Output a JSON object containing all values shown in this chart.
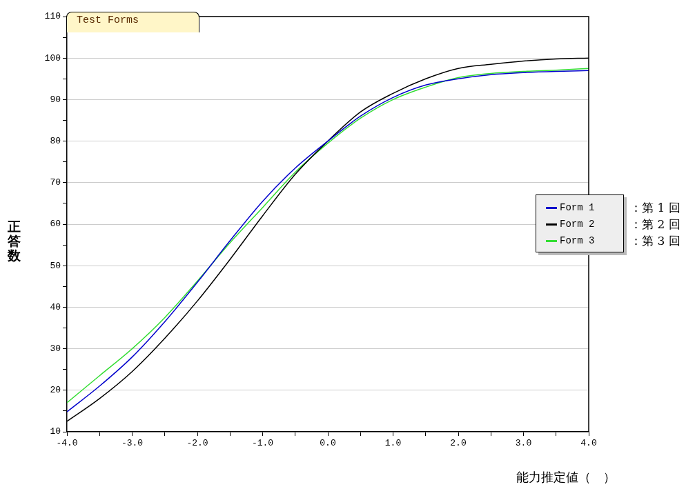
{
  "chart_data": {
    "type": "line",
    "title": "Test Forms",
    "xlabel": "能力推定値（　）",
    "ylabel": "正答数",
    "x": [
      -4,
      -3.5,
      -3,
      -2.5,
      -2,
      -1.5,
      -1,
      -0.5,
      0,
      0.5,
      1,
      1.5,
      2,
      2.5,
      3,
      3.5,
      4
    ],
    "series": [
      {
        "name": "Form 1",
        "color": "#0000cc",
        "values": [
          14.8,
          21,
          28,
          36.5,
          46,
          56,
          65.5,
          73.5,
          80,
          86,
          90.5,
          93.5,
          95,
          96,
          96.5,
          96.8,
          97
        ]
      },
      {
        "name": "Form 2",
        "color": "#000000",
        "values": [
          12.5,
          18,
          24.5,
          32.5,
          41.5,
          51.5,
          62,
          72,
          80,
          87,
          91.5,
          95,
          97.5,
          98.5,
          99.3,
          99.8,
          100
        ]
      },
      {
        "name": "Form 3",
        "color": "#33dd33",
        "values": [
          17,
          23.5,
          30,
          37.5,
          46.3,
          55.5,
          64,
          72.5,
          79.5,
          85.5,
          90,
          93,
          95.3,
          96.3,
          96.8,
          97.1,
          97.5
        ]
      }
    ],
    "annotations": [
      "：第 1 回",
      "：第 2 回",
      "：第 3 回"
    ],
    "xlim": [
      -4,
      4
    ],
    "xticks": [
      {
        "value": -4,
        "label": "-4.0"
      },
      {
        "value": -3.5,
        "label": null
      },
      {
        "value": -3,
        "label": "-3.0"
      },
      {
        "value": -2.5,
        "label": null
      },
      {
        "value": -2,
        "label": "-2.0"
      },
      {
        "value": -1.5,
        "label": null
      },
      {
        "value": -1,
        "label": "-1.0"
      },
      {
        "value": -0.5,
        "label": null
      },
      {
        "value": 0,
        "label": "0.0"
      },
      {
        "value": 0.5,
        "label": null
      },
      {
        "value": 1,
        "label": "1.0"
      },
      {
        "value": 1.5,
        "label": null
      },
      {
        "value": 2,
        "label": "2.0"
      },
      {
        "value": 2.5,
        "label": null
      },
      {
        "value": 3,
        "label": "3.0"
      },
      {
        "value": 3.5,
        "label": null
      },
      {
        "value": 4,
        "label": "4.0"
      }
    ],
    "ylim": [
      10,
      110
    ],
    "yticks": [
      10,
      {
        "value": 15,
        "label": null
      },
      20,
      {
        "value": 25,
        "label": null
      },
      30,
      {
        "value": 35,
        "label": null
      },
      40,
      {
        "value": 45,
        "label": null
      },
      50,
      {
        "value": 55,
        "label": null
      },
      60,
      {
        "value": 65,
        "label": null
      },
      70,
      {
        "value": 75,
        "label": null
      },
      80,
      {
        "value": 85,
        "label": null
      },
      90,
      {
        "value": 95,
        "label": null
      },
      100,
      {
        "value": 105,
        "label": null
      },
      110
    ],
    "grid": "y",
    "legend": "right",
    "marker": "none",
    "line_style": "solid"
  }
}
